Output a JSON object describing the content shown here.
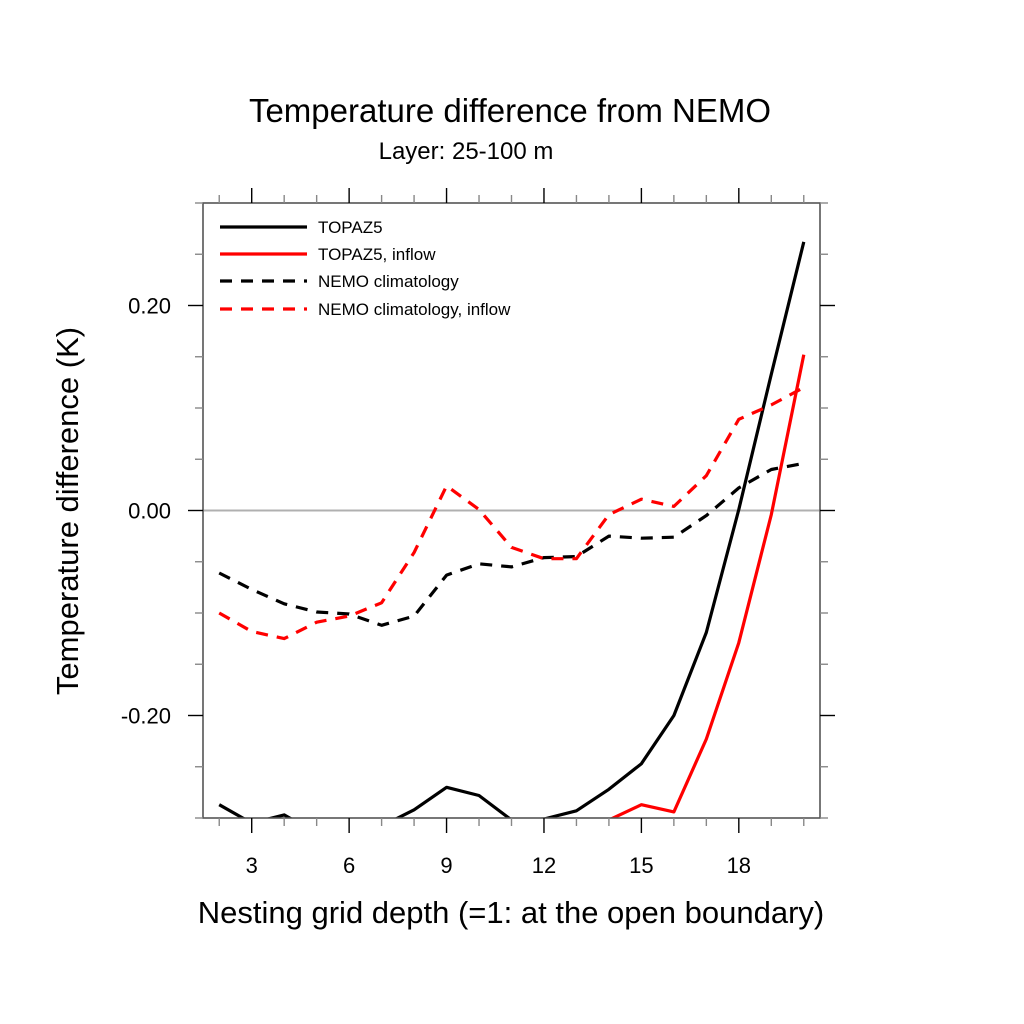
{
  "chart_data": {
    "type": "line",
    "title": "Temperature difference from NEMO",
    "subtitle": "Layer: 25-100 m",
    "xlabel": "Nesting grid depth (=1: at the open boundary)",
    "ylabel": "Temperature difference (K)",
    "xlim": [
      1.5,
      20.5
    ],
    "ylim": [
      -0.3,
      0.3
    ],
    "x_ticks": [
      3,
      6,
      9,
      12,
      15,
      18
    ],
    "x_tick_labels": [
      "3",
      "6",
      "9",
      "12",
      "15",
      "18"
    ],
    "x_minor_step": 1,
    "y_ticks": [
      -0.2,
      0.0,
      0.2
    ],
    "y_tick_labels": [
      "-0.20",
      "0.00",
      "0.20"
    ],
    "y_minor_step": 0.05,
    "reference_line": {
      "y": 0.0,
      "color": "#b0b0b0"
    },
    "grid": false,
    "legend_position": "top-left",
    "x": [
      2,
      3,
      4,
      5,
      6,
      7,
      8,
      9,
      10,
      11,
      12,
      13,
      14,
      15,
      16,
      17,
      18,
      19,
      20
    ],
    "series": [
      {
        "name": "TOPAZ5",
        "color": "#000000",
        "style": "solid",
        "values": [
          -0.287,
          -0.305,
          -0.297,
          -0.315,
          -0.32,
          -0.308,
          -0.292,
          -0.27,
          -0.278,
          -0.302,
          -0.301,
          -0.293,
          -0.272,
          -0.247,
          -0.2,
          -0.119,
          0.001,
          0.133,
          0.262
        ]
      },
      {
        "name": "TOPAZ5, inflow",
        "color": "#ff0000",
        "style": "solid",
        "values": [
          null,
          null,
          null,
          null,
          null,
          null,
          null,
          null,
          null,
          null,
          null,
          null,
          -0.302,
          -0.287,
          -0.294,
          -0.223,
          -0.129,
          -0.004,
          0.152
        ]
      },
      {
        "name": "NEMO climatology",
        "color": "#000000",
        "style": "dashed",
        "values": [
          -0.061,
          -0.077,
          -0.091,
          -0.099,
          -0.101,
          -0.112,
          -0.103,
          -0.063,
          -0.052,
          -0.055,
          -0.046,
          -0.045,
          -0.025,
          -0.027,
          -0.026,
          -0.005,
          0.022,
          0.04,
          0.046
        ]
      },
      {
        "name": "NEMO climatology, inflow",
        "color": "#ff0000",
        "style": "dashed",
        "values": [
          -0.1,
          -0.118,
          -0.125,
          -0.109,
          -0.103,
          -0.09,
          -0.041,
          0.024,
          0.001,
          -0.036,
          -0.047,
          -0.047,
          -0.004,
          0.011,
          0.004,
          0.034,
          0.089,
          0.103,
          0.12
        ]
      }
    ]
  }
}
